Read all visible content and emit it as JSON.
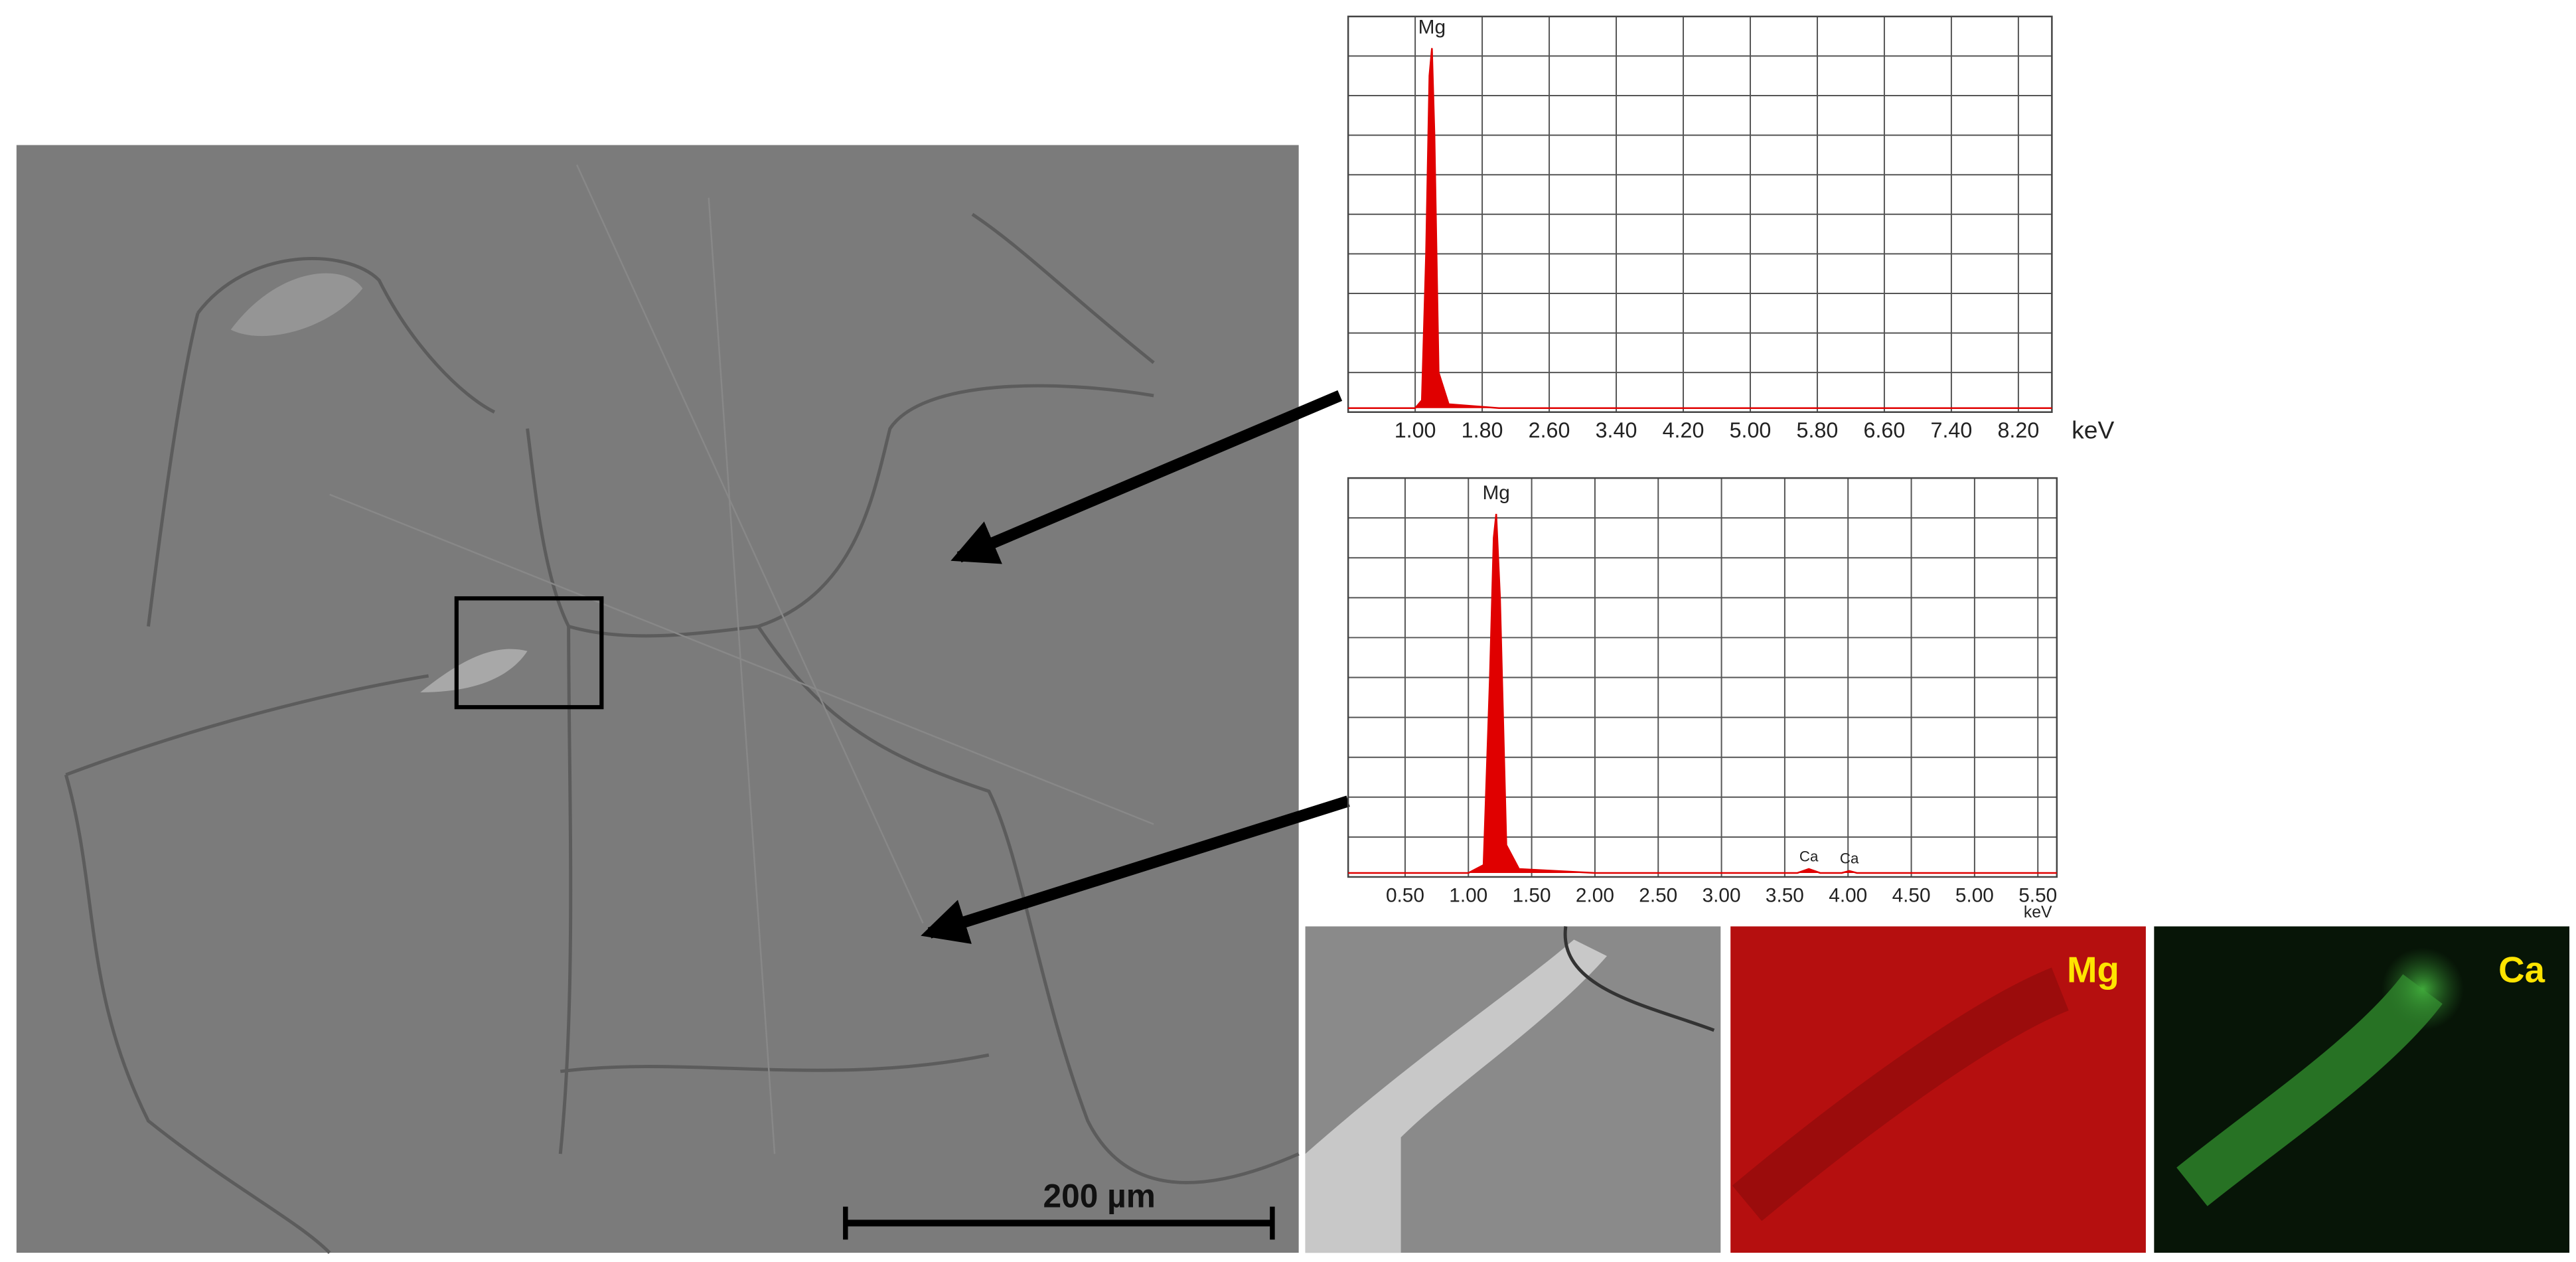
{
  "chart_data": [
    {
      "type": "area",
      "color": "#e00000",
      "x_label": "keV",
      "x": [
        0.2,
        1.0,
        1.08,
        1.13,
        1.17,
        1.2,
        1.23,
        1.28,
        1.4,
        2.0,
        4.0,
        6.0,
        8.6
      ],
      "values": [
        1,
        1,
        3,
        40,
        85,
        92,
        70,
        10,
        2,
        1,
        1,
        1,
        1
      ],
      "annotations": [
        {
          "text": "Mg",
          "x": 1.2
        }
      ],
      "xlim": [
        0.2,
        8.6
      ],
      "ylim": [
        0,
        100
      ],
      "xticks": [
        {
          "value": 1.0,
          "label": "1.00"
        },
        {
          "value": 1.8,
          "label": "1.80"
        },
        {
          "value": 2.6,
          "label": "2.60"
        },
        {
          "value": 3.4,
          "label": "3.40"
        },
        {
          "value": 4.2,
          "label": "4.20"
        },
        {
          "value": 5.0,
          "label": "5.00"
        },
        {
          "value": 5.8,
          "label": "5.80"
        },
        {
          "value": 6.6,
          "label": "6.60"
        },
        {
          "value": 7.4,
          "label": "7.40"
        },
        {
          "value": 8.2,
          "label": "8.20"
        }
      ],
      "yticks": [
        0,
        10,
        20,
        30,
        40,
        50,
        60,
        70,
        80,
        90,
        100
      ],
      "grid": true
    },
    {
      "type": "area",
      "color": "#e00000",
      "x_label": "keV",
      "x": [
        0.05,
        1.0,
        1.12,
        1.17,
        1.2,
        1.22,
        1.25,
        1.3,
        1.4,
        2.0,
        3.6,
        3.69,
        3.78,
        3.95,
        4.01,
        4.07,
        5.65
      ],
      "values": [
        1,
        1,
        3,
        50,
        85,
        91,
        70,
        8,
        2,
        1,
        1,
        2,
        1,
        1,
        1.5,
        1,
        1
      ],
      "annotations": [
        {
          "text": "Mg",
          "x": 1.22
        },
        {
          "text": "Ca",
          "x": 3.69
        },
        {
          "text": "Ca",
          "x": 4.01
        }
      ],
      "xlim": [
        0.05,
        5.65
      ],
      "ylim": [
        0,
        100
      ],
      "xticks": [
        {
          "value": 0.5,
          "label": "0.50"
        },
        {
          "value": 1.0,
          "label": "1.00"
        },
        {
          "value": 1.5,
          "label": "1.50"
        },
        {
          "value": 2.0,
          "label": "2.00"
        },
        {
          "value": 2.5,
          "label": "2.50"
        },
        {
          "value": 3.0,
          "label": "3.00"
        },
        {
          "value": 3.5,
          "label": "3.50"
        },
        {
          "value": 4.0,
          "label": "4.00"
        },
        {
          "value": 4.5,
          "label": "4.50"
        },
        {
          "value": 5.0,
          "label": "5.00"
        },
        {
          "value": 5.5,
          "label": "5.50"
        }
      ],
      "yticks": [
        0,
        10,
        20,
        30,
        40,
        50,
        60,
        70,
        80,
        90,
        100
      ],
      "grid": true
    }
  ],
  "sem": {
    "scale_bar": "200 µm"
  },
  "maps": [
    "Mg",
    "Ca"
  ]
}
